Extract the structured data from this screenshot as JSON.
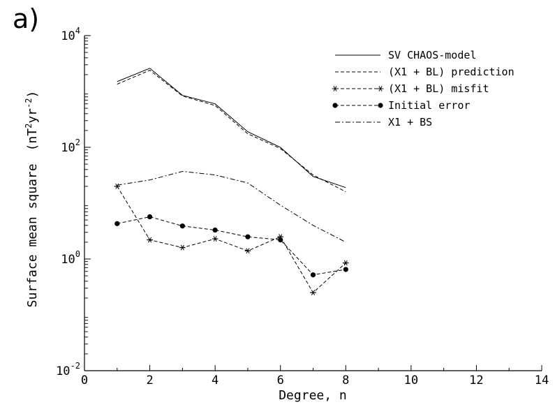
{
  "panel_label": "a)",
  "chart_data": {
    "type": "line",
    "xlabel": "Degree, n",
    "ylabel": "Surface mean square",
    "ylabel_unit": {
      "base1": "(nT",
      "sup1": "2",
      "base2": "yr",
      "sup2": "-2",
      "close": ")"
    },
    "xlim": [
      0,
      14
    ],
    "ylim": [
      0.01,
      10000
    ],
    "y_scale": "log",
    "x_ticks": [
      0,
      2,
      4,
      6,
      8,
      10,
      12,
      14
    ],
    "x_tick_labels": [
      "0",
      "2",
      "4",
      "6",
      "8",
      "10",
      "12",
      "14"
    ],
    "y_ticks": [
      {
        "value": 0.01,
        "base": "10",
        "exp": "-2"
      },
      {
        "value": 1,
        "base": "10",
        "exp": "0"
      },
      {
        "value": 100,
        "base": "10",
        "exp": "2"
      },
      {
        "value": 10000,
        "base": "10",
        "exp": "4"
      }
    ],
    "grid": false,
    "legend_position": "top-right",
    "series": [
      {
        "name": "SV CHAOS-model",
        "style": "solid",
        "marker": "none",
        "x": [
          1,
          2,
          3,
          4,
          5,
          6,
          7,
          8
        ],
        "y": [
          1500,
          2600,
          850,
          600,
          190,
          100,
          30,
          19
        ]
      },
      {
        "name": "(X1 + BL) prediction",
        "style": "dashed",
        "marker": "none",
        "x": [
          1,
          2,
          3,
          4,
          5,
          6,
          7,
          8
        ],
        "y": [
          1350,
          2400,
          830,
          560,
          175,
          95,
          32,
          16
        ]
      },
      {
        "name": "(X1 + BL) misfit",
        "style": "dashed",
        "marker": "star",
        "x": [
          1,
          2,
          3,
          4,
          5,
          6,
          7,
          8
        ],
        "y": [
          20,
          2.2,
          1.6,
          2.3,
          1.4,
          2.5,
          0.25,
          0.85
        ]
      },
      {
        "name": "Initial error",
        "style": "dashed",
        "marker": "circle",
        "x": [
          1,
          2,
          3,
          4,
          5,
          6,
          7,
          8
        ],
        "y": [
          4.3,
          5.7,
          3.9,
          3.3,
          2.5,
          2.2,
          0.52,
          0.65
        ]
      },
      {
        "name": "X1 + BS",
        "style": "dashdot",
        "marker": "none",
        "x": [
          1,
          2,
          3,
          4,
          5,
          6,
          7,
          8
        ],
        "y": [
          21,
          26,
          37,
          32,
          23,
          9.2,
          4.0,
          2.0
        ]
      }
    ]
  }
}
